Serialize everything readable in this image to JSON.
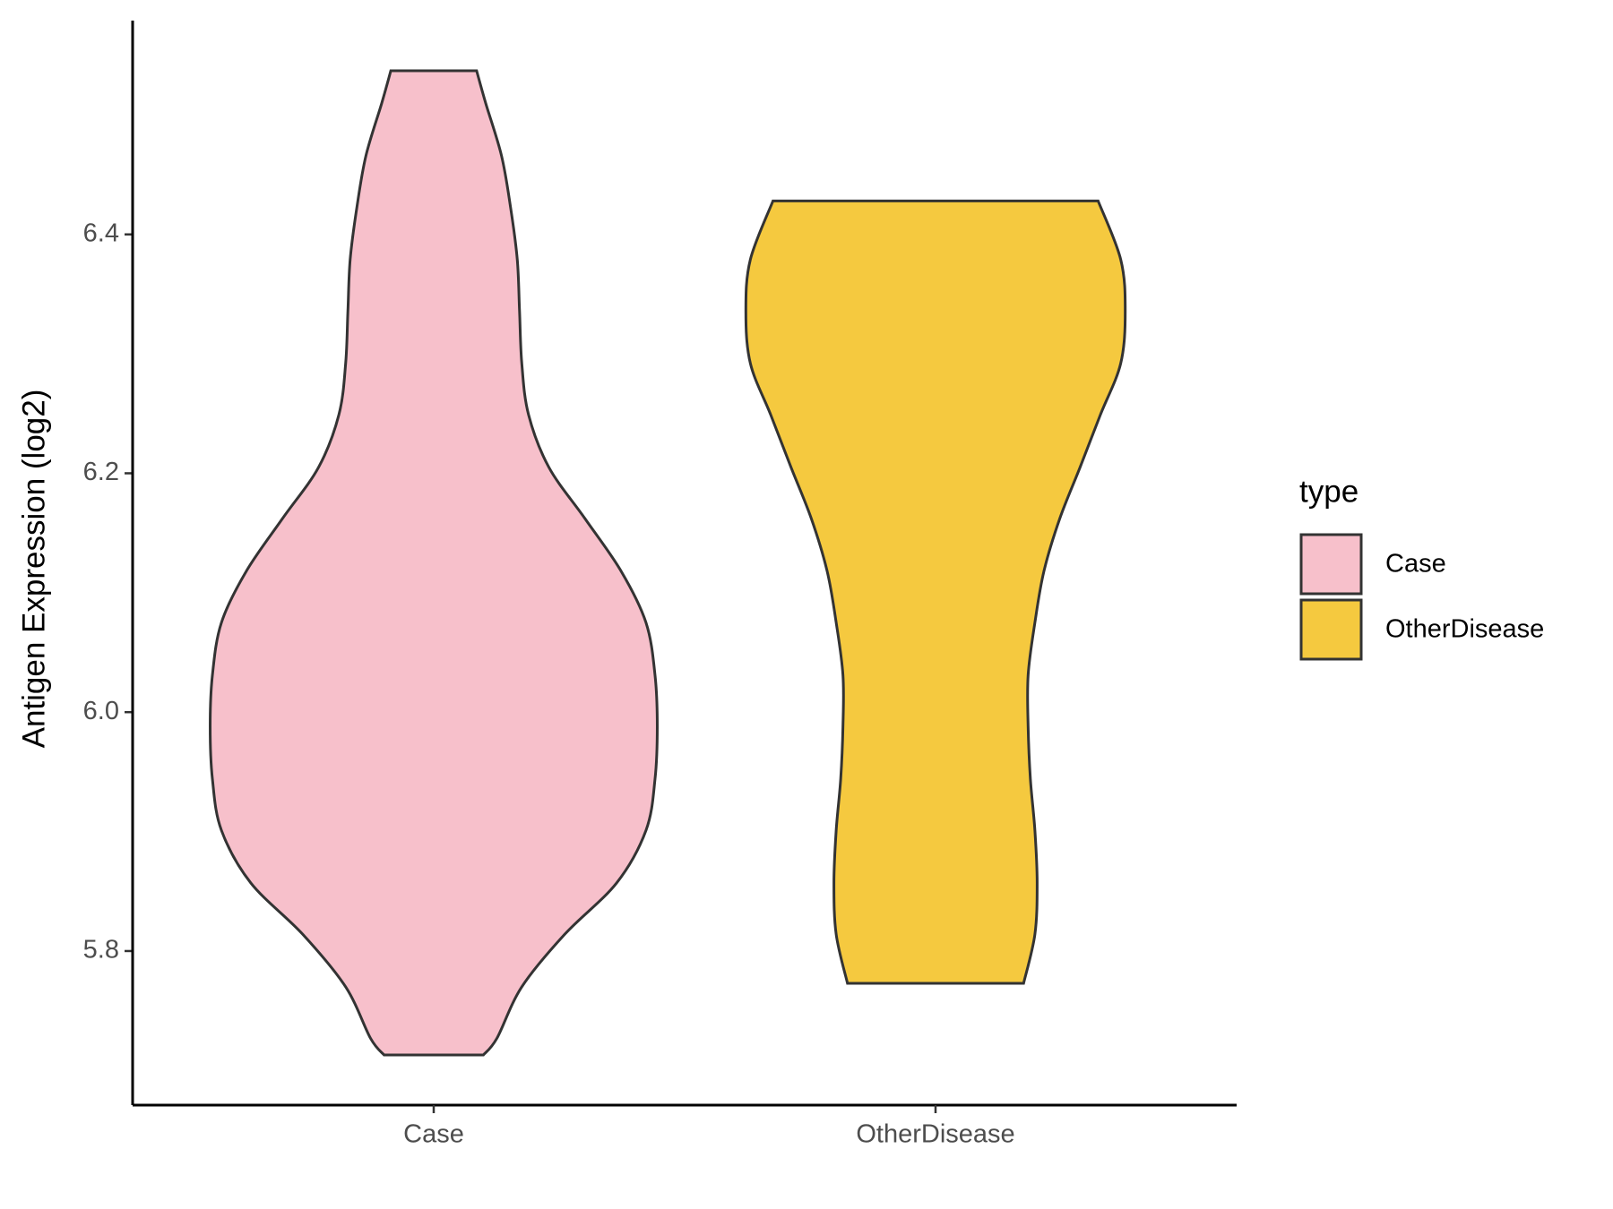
{
  "chart_data": {
    "type": "violin",
    "y_label": "Antigen Expression (log2)",
    "categories": [
      "Case",
      "OtherDisease"
    ],
    "legend_title": "type",
    "legend_position": "right",
    "ylim": [
      5.671,
      6.579
    ],
    "yticks": [
      5.8,
      {
        "value": 6.0,
        "label": "6.0"
      },
      6.2,
      6.4
    ],
    "series": [
      {
        "name": "Case",
        "color": "#f7c0cb",
        "y": [
          6.537,
          6.51,
          6.466,
          6.423,
          6.379,
          6.336,
          6.292,
          6.249,
          6.205,
          6.162,
          6.118,
          6.075,
          6.031,
          5.988,
          5.944,
          5.901,
          5.857,
          5.814,
          5.77,
          5.727,
          5.713
        ],
        "density": [
          0.19,
          0.23,
          0.3,
          0.34,
          0.37,
          0.38,
          0.39,
          0.42,
          0.51,
          0.67,
          0.83,
          0.94,
          0.98,
          0.99,
          0.98,
          0.94,
          0.81,
          0.58,
          0.39,
          0.28,
          0.22
        ]
      },
      {
        "name": "OtherDisease",
        "color": "#f5c93f",
        "y": [
          6.428,
          6.379,
          6.336,
          6.292,
          6.249,
          6.205,
          6.162,
          6.118,
          6.075,
          6.031,
          5.988,
          5.944,
          5.901,
          5.857,
          5.814,
          5.773
        ],
        "density": [
          0.72,
          0.82,
          0.84,
          0.82,
          0.73,
          0.64,
          0.55,
          0.48,
          0.44,
          0.41,
          0.41,
          0.42,
          0.44,
          0.45,
          0.44,
          0.39
        ]
      }
    ]
  }
}
